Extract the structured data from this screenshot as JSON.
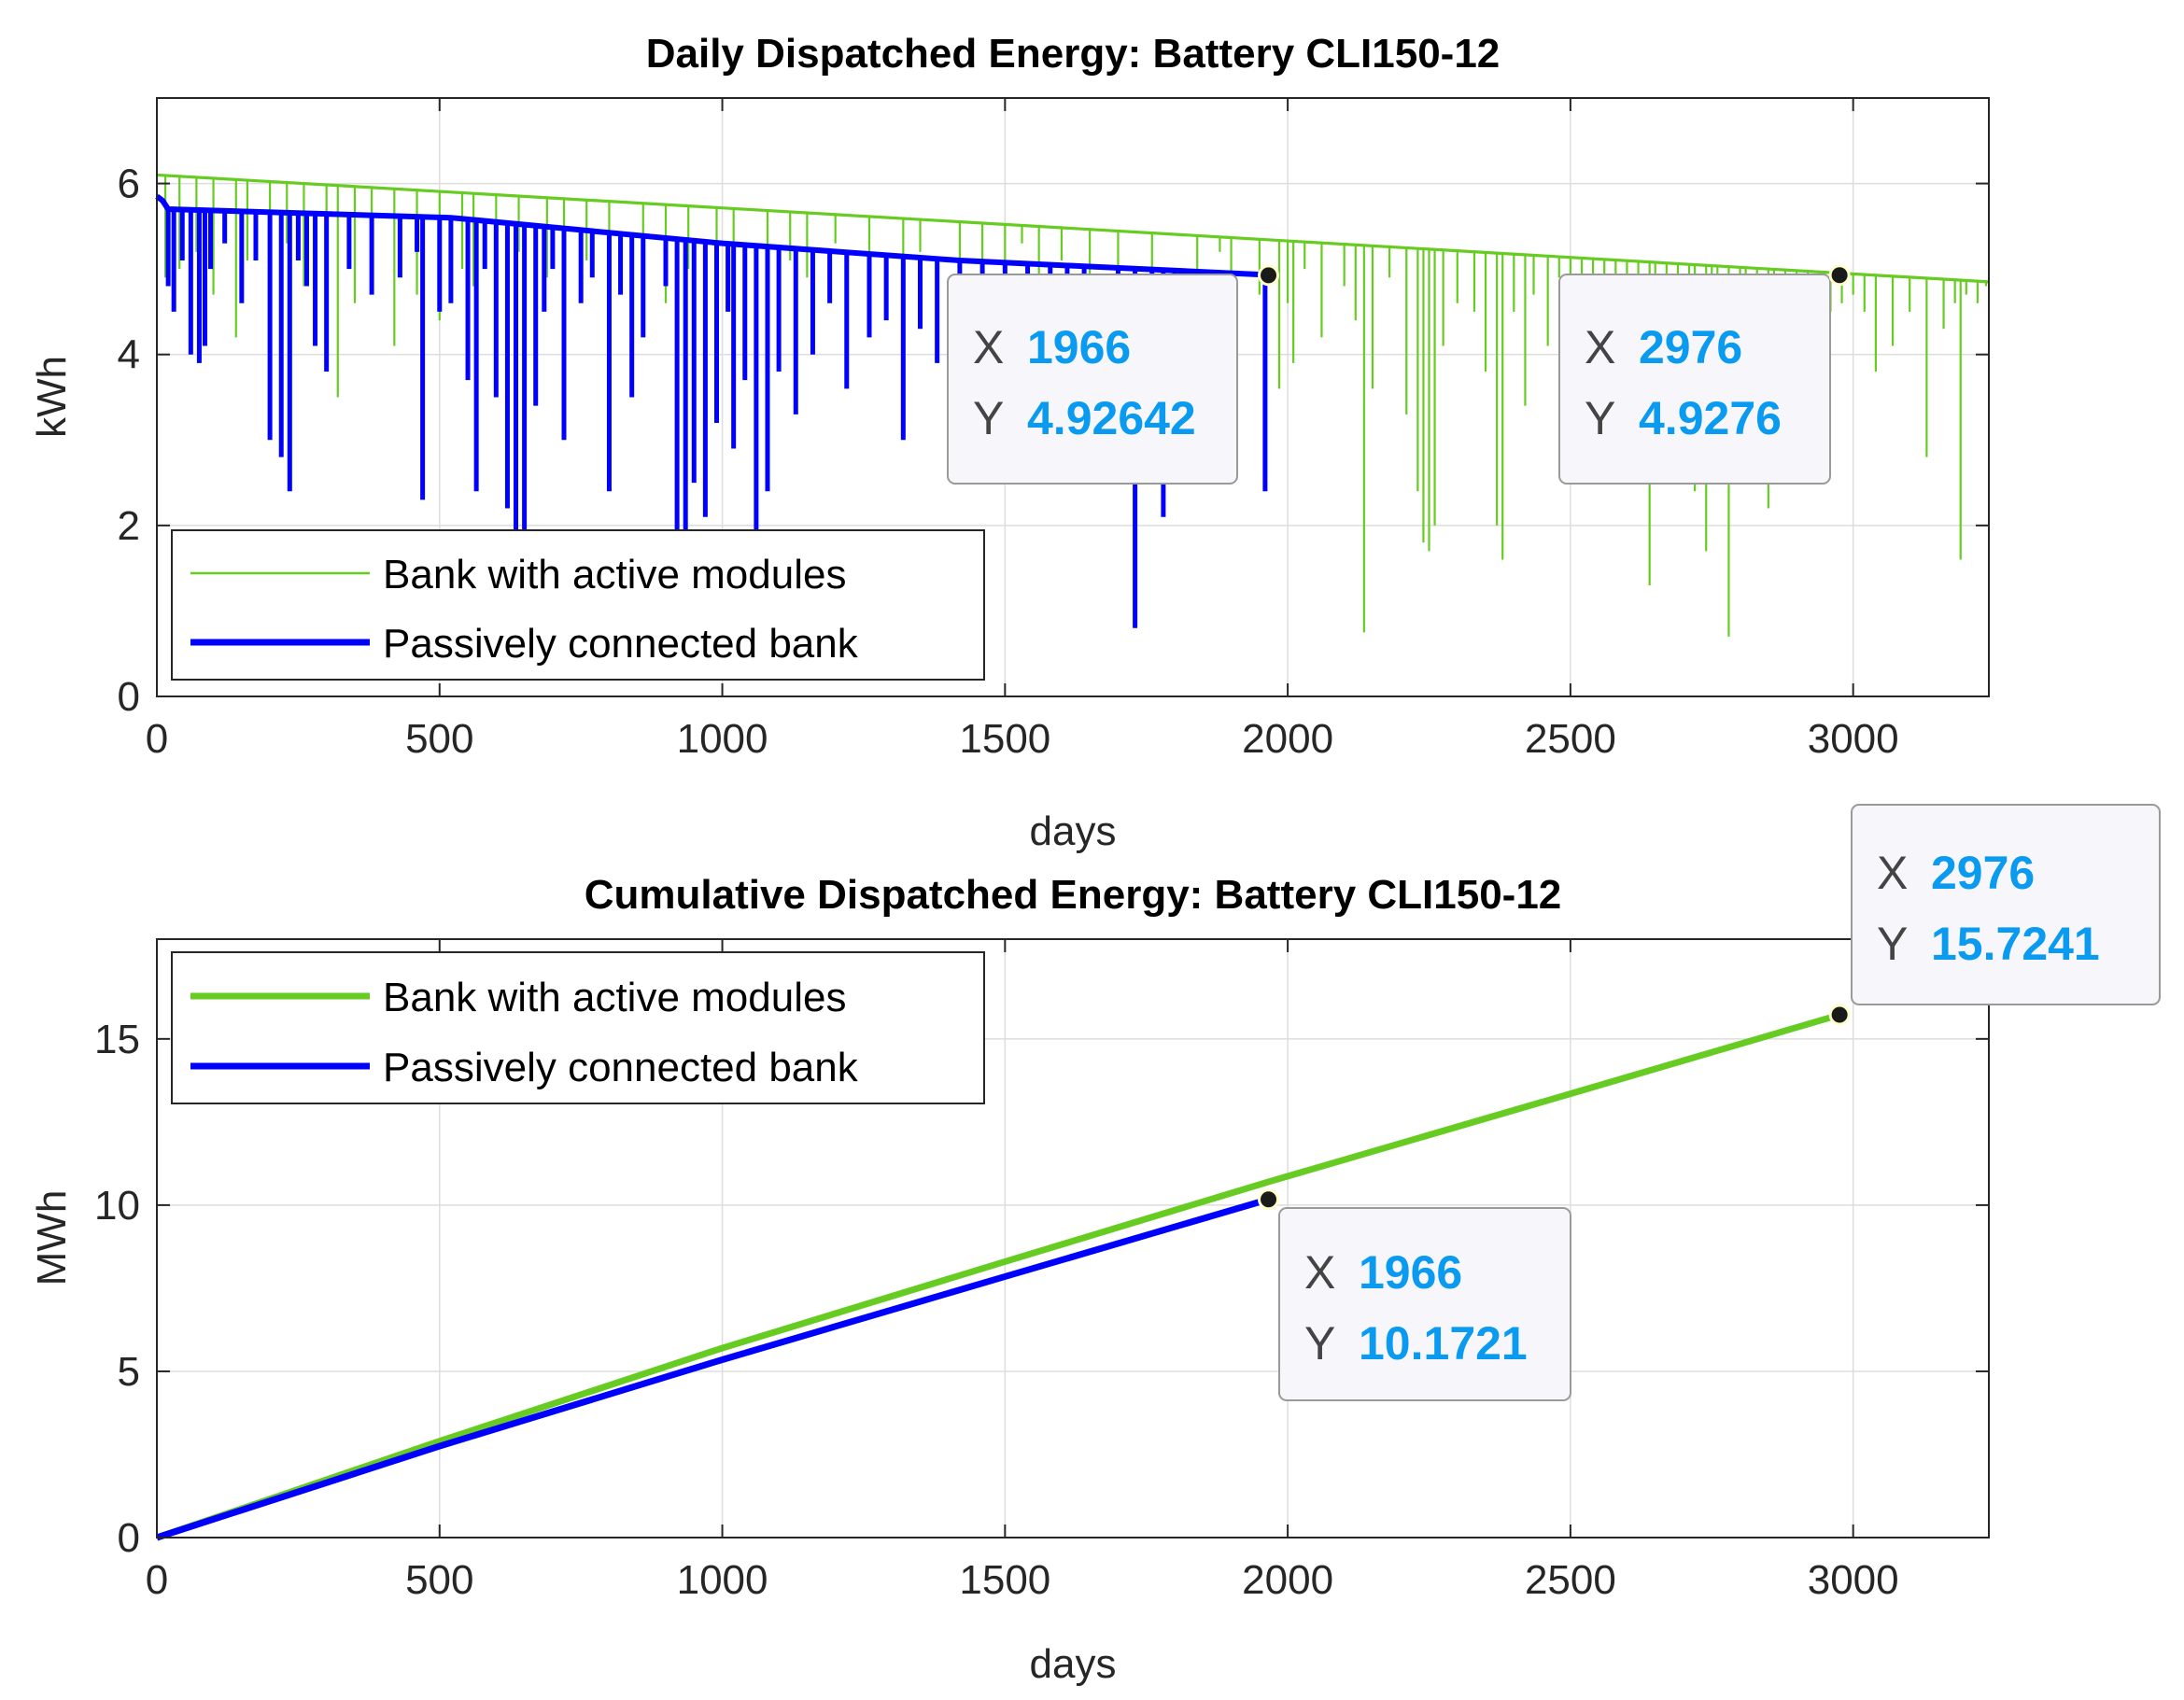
{
  "colors": {
    "active": "#66cc22",
    "passive": "#0000ff",
    "tip_value": "#0a9af0",
    "grid": "#dddddd",
    "axis": "#262626"
  },
  "chart_data": [
    {
      "type": "line",
      "title": "Daily Dispatched Energy: Battery CLI150-12",
      "xlabel": "days",
      "ylabel": "kWh",
      "xlim": [
        0,
        3240
      ],
      "ylim": [
        0,
        7
      ],
      "xticks": [
        0,
        500,
        1000,
        1500,
        2000,
        2500,
        3000
      ],
      "yticks": [
        0,
        2,
        4,
        6
      ],
      "xtick_labels": [
        "0",
        "500",
        "1000",
        "1500",
        "2000",
        "2500",
        "3000"
      ],
      "ytick_labels": [
        "0",
        "2",
        "4",
        "6"
      ],
      "grid": true,
      "legend_position": "bottom-left",
      "series": [
        {
          "name": "Bank with active modules",
          "color": "#66cc22",
          "baseline": {
            "x": [
              0,
              3240
            ],
            "y": [
              6.1,
              4.85
            ]
          },
          "dips": [
            [
              15,
              4.9
            ],
            [
              40,
              5.0
            ],
            [
              70,
              5.2
            ],
            [
              100,
              4.7
            ],
            [
              140,
              4.2
            ],
            [
              160,
              5.1
            ],
            [
              200,
              4.9
            ],
            [
              230,
              5.3
            ],
            [
              260,
              4.8
            ],
            [
              300,
              4.4
            ],
            [
              320,
              3.5
            ],
            [
              350,
              4.6
            ],
            [
              380,
              5.2
            ],
            [
              420,
              4.1
            ],
            [
              460,
              4.7
            ],
            [
              500,
              4.4
            ],
            [
              540,
              5.0
            ],
            [
              560,
              4.8
            ],
            [
              600,
              4.5
            ],
            [
              640,
              5.2
            ],
            [
              690,
              4.9
            ],
            [
              720,
              4.3
            ],
            [
              760,
              5.1
            ],
            [
              800,
              4.7
            ],
            [
              860,
              5.3
            ],
            [
              900,
              4.6
            ],
            [
              940,
              5.0
            ],
            [
              990,
              4.8
            ],
            [
              1020,
              5.2
            ],
            [
              1080,
              4.4
            ],
            [
              1120,
              5.1
            ],
            [
              1150,
              4.9
            ],
            [
              1200,
              5.3
            ],
            [
              1260,
              5.0
            ],
            [
              1320,
              4.7
            ],
            [
              1350,
              5.2
            ],
            [
              1420,
              4.6
            ],
            [
              1460,
              5.1
            ],
            [
              1500,
              4.9
            ],
            [
              1530,
              5.3
            ],
            [
              1560,
              4.8
            ],
            [
              1600,
              5.1
            ],
            [
              1650,
              4.3
            ],
            [
              1700,
              5.0
            ],
            [
              1760,
              4.6
            ],
            [
              1840,
              4.9
            ],
            [
              1880,
              5.2
            ],
            [
              1900,
              4.4
            ],
            [
              1950,
              4.7
            ],
            [
              1985,
              3.6
            ],
            [
              2000,
              4.6
            ],
            [
              2010,
              3.9
            ],
            [
              2030,
              5.0
            ],
            [
              2060,
              4.2
            ],
            [
              2100,
              4.8
            ],
            [
              2120,
              4.4
            ],
            [
              2135,
              0.75
            ],
            [
              2150,
              3.6
            ],
            [
              2180,
              4.9
            ],
            [
              2210,
              3.3
            ],
            [
              2230,
              2.4
            ],
            [
              2240,
              1.8
            ],
            [
              2250,
              1.7
            ],
            [
              2260,
              2.0
            ],
            [
              2275,
              4.1
            ],
            [
              2300,
              4.6
            ],
            [
              2330,
              4.5
            ],
            [
              2350,
              3.8
            ],
            [
              2370,
              2.0
            ],
            [
              2380,
              1.6
            ],
            [
              2400,
              4.5
            ],
            [
              2420,
              3.4
            ],
            [
              2435,
              4.7
            ],
            [
              2460,
              4.1
            ],
            [
              2480,
              4.9
            ],
            [
              2500,
              2.5
            ],
            [
              2520,
              4.2
            ],
            [
              2540,
              4.7
            ],
            [
              2560,
              4.4
            ],
            [
              2580,
              2.6
            ],
            [
              2600,
              4.5
            ],
            [
              2620,
              4.8
            ],
            [
              2640,
              1.3
            ],
            [
              2650,
              4.0
            ],
            [
              2670,
              4.4
            ],
            [
              2690,
              4.6
            ],
            [
              2710,
              3.7
            ],
            [
              2720,
              2.4
            ],
            [
              2740,
              1.7
            ],
            [
              2750,
              4.5
            ],
            [
              2760,
              4.8
            ],
            [
              2780,
              0.7
            ],
            [
              2800,
              4.3
            ],
            [
              2810,
              3.1
            ],
            [
              2830,
              4.6
            ],
            [
              2850,
              2.2
            ],
            [
              2860,
              4.7
            ],
            [
              2880,
              4.9
            ],
            [
              2900,
              2.6
            ],
            [
              2920,
              4.4
            ],
            [
              2940,
              4.1
            ],
            [
              2950,
              3.1
            ],
            [
              2960,
              4.5
            ],
            [
              2980,
              4.6
            ],
            [
              3000,
              4.7
            ],
            [
              3020,
              4.5
            ],
            [
              3040,
              3.8
            ],
            [
              3070,
              4.1
            ],
            [
              3100,
              4.5
            ],
            [
              3130,
              2.8
            ],
            [
              3160,
              4.3
            ],
            [
              3180,
              4.6
            ],
            [
              3190,
              1.6
            ],
            [
              3200,
              4.7
            ],
            [
              3220,
              4.6
            ],
            [
              3235,
              4.8
            ]
          ]
        },
        {
          "name": "Passively connected bank",
          "color": "#0000ff",
          "baseline": {
            "x": [
              0,
              10,
              20,
              520,
              1000,
              1420,
              1966
            ],
            "y": [
              5.85,
              5.8,
              5.7,
              5.6,
              5.3,
              5.1,
              4.93
            ]
          },
          "dips": [
            [
              20,
              4.8
            ],
            [
              30,
              4.5
            ],
            [
              45,
              5.1
            ],
            [
              60,
              4.0
            ],
            [
              75,
              3.9
            ],
            [
              85,
              4.1
            ],
            [
              95,
              5.0
            ],
            [
              120,
              5.3
            ],
            [
              150,
              4.6
            ],
            [
              175,
              5.1
            ],
            [
              200,
              3.0
            ],
            [
              220,
              2.8
            ],
            [
              235,
              2.4
            ],
            [
              250,
              5.1
            ],
            [
              265,
              4.8
            ],
            [
              280,
              4.1
            ],
            [
              300,
              3.8
            ],
            [
              340,
              5.0
            ],
            [
              380,
              4.7
            ],
            [
              430,
              4.9
            ],
            [
              460,
              5.2
            ],
            [
              470,
              2.3
            ],
            [
              500,
              4.5
            ],
            [
              520,
              4.6
            ],
            [
              550,
              3.7
            ],
            [
              565,
              2.4
            ],
            [
              580,
              5.0
            ],
            [
              600,
              3.5
            ],
            [
              620,
              2.2
            ],
            [
              635,
              1.7
            ],
            [
              650,
              1.3
            ],
            [
              670,
              3.4
            ],
            [
              685,
              4.5
            ],
            [
              700,
              5.0
            ],
            [
              720,
              3.0
            ],
            [
              750,
              4.6
            ],
            [
              770,
              4.9
            ],
            [
              800,
              2.4
            ],
            [
              820,
              4.7
            ],
            [
              840,
              3.5
            ],
            [
              860,
              4.2
            ],
            [
              900,
              4.8
            ],
            [
              920,
              1.8
            ],
            [
              935,
              1.5
            ],
            [
              950,
              2.5
            ],
            [
              970,
              2.1
            ],
            [
              990,
              3.2
            ],
            [
              1010,
              4.5
            ],
            [
              1020,
              2.9
            ],
            [
              1040,
              3.7
            ],
            [
              1060,
              1.6
            ],
            [
              1080,
              2.4
            ],
            [
              1100,
              3.8
            ],
            [
              1130,
              3.3
            ],
            [
              1160,
              4.0
            ],
            [
              1190,
              4.6
            ],
            [
              1220,
              3.6
            ],
            [
              1260,
              4.2
            ],
            [
              1290,
              4.4
            ],
            [
              1320,
              3.0
            ],
            [
              1350,
              4.3
            ],
            [
              1380,
              3.9
            ],
            [
              1420,
              4.0
            ],
            [
              1460,
              3.5
            ],
            [
              1500,
              4.4
            ],
            [
              1540,
              4.1
            ],
            [
              1580,
              4.3
            ],
            [
              1610,
              4.6
            ],
            [
              1640,
              3.2
            ],
            [
              1700,
              4.6
            ],
            [
              1730,
              0.8
            ],
            [
              1760,
              3.3
            ],
            [
              1780,
              2.1
            ],
            [
              1800,
              2.5
            ],
            [
              1820,
              4.1
            ],
            [
              1860,
              4.5
            ],
            [
              1900,
              4.6
            ],
            [
              1960,
              2.4
            ]
          ]
        }
      ],
      "datatips": [
        {
          "x_label": "X",
          "x_value": "1966",
          "y_label": "Y",
          "y_value": "4.92642",
          "x": 1966,
          "y": 4.92642
        },
        {
          "x_label": "X",
          "x_value": "2976",
          "y_label": "Y",
          "y_value": "4.9276",
          "x": 2976,
          "y": 4.9276
        }
      ]
    },
    {
      "type": "line",
      "title": "Cumulative Dispatched Energy: Battery CLI150-12",
      "xlabel": "days",
      "ylabel": "MWh",
      "xlim": [
        0,
        3240
      ],
      "ylim": [
        0,
        18
      ],
      "xticks": [
        0,
        500,
        1000,
        1500,
        2000,
        2500,
        3000
      ],
      "yticks": [
        0,
        5,
        10,
        15
      ],
      "xtick_labels": [
        "0",
        "500",
        "1000",
        "1500",
        "2000",
        "2500",
        "3000"
      ],
      "ytick_labels": [
        "0",
        "5",
        "10",
        "15"
      ],
      "grid": true,
      "legend_position": "top-left",
      "series": [
        {
          "name": "Bank with active modules",
          "color": "#66cc22",
          "x": [
            0,
            500,
            1000,
            1500,
            1966,
            2500,
            2976
          ],
          "y": [
            0,
            2.9,
            5.7,
            8.3,
            10.7,
            13.35,
            15.7241
          ]
        },
        {
          "name": "Passively connected bank",
          "color": "#0000ff",
          "x": [
            0,
            500,
            1000,
            1500,
            1966
          ],
          "y": [
            0,
            2.75,
            5.35,
            7.85,
            10.1721
          ]
        }
      ],
      "datatips": [
        {
          "x_label": "X",
          "x_value": "2976",
          "y_label": "Y",
          "y_value": "15.7241",
          "x": 2976,
          "y": 15.7241
        },
        {
          "x_label": "X",
          "x_value": "1966",
          "y_label": "Y",
          "y_value": "10.1721",
          "x": 1966,
          "y": 10.1721
        }
      ]
    }
  ]
}
